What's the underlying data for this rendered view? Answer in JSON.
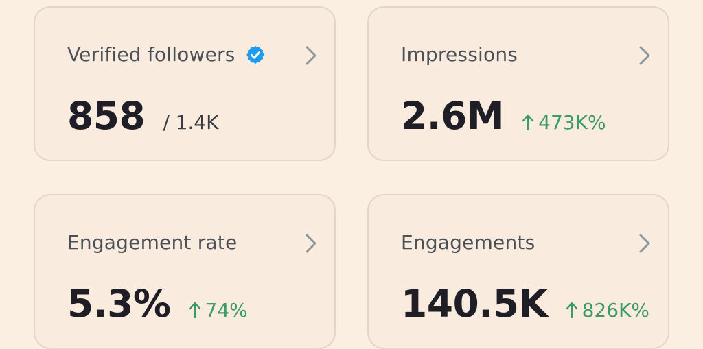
{
  "colors": {
    "background": "#fbefe2",
    "card_border": "#e2d6c9",
    "positive": "#3c9a6a",
    "verified_badge": "#1d9bf0",
    "chevron": "#8a959c"
  },
  "cards": [
    {
      "label": "Verified followers",
      "value": "858",
      "secondary": "/ 1.4K",
      "icon": "verified-badge-icon"
    },
    {
      "label": "Impressions",
      "value": "2.6M",
      "delta": "473K%",
      "delta_direction": "up"
    },
    {
      "label": "Engagement rate",
      "value": "5.3%",
      "delta": "74%",
      "delta_direction": "up"
    },
    {
      "label": "Engagements",
      "value": "140.5K",
      "delta": "826K%",
      "delta_direction": "up"
    }
  ]
}
